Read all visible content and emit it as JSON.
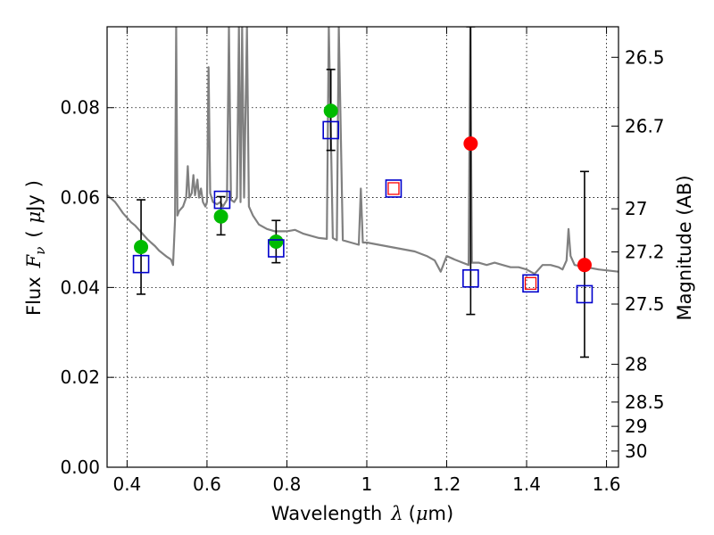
{
  "chart_data": {
    "type": "scatter",
    "title": "",
    "xlabel": "Wavelength",
    "xlabel_symbol": "λ",
    "xlabel_unit_prefix": "μ",
    "xlabel_unit": "m",
    "ylabel_left": "Flux",
    "ylabel_left_symbol": "F",
    "ylabel_left_subscript": "ν",
    "ylabel_left_unit_prefix": "μ",
    "ylabel_left_unit": "Jy",
    "ylabel_right": "Magnitude (AB)",
    "xlim": [
      0.35,
      1.63
    ],
    "ylim": [
      0.0,
      0.098
    ],
    "grid": true,
    "x_ticks": [
      0.4,
      0.6,
      0.8,
      1.0,
      1.2,
      1.4,
      1.6
    ],
    "x_tick_labels": [
      "0.4",
      "0.6",
      "0.8",
      "1",
      "1.2",
      "1.4",
      "1.6"
    ],
    "y_ticks": [
      0.0,
      0.02,
      0.04,
      0.06,
      0.08
    ],
    "y_tick_labels": [
      "0.00",
      "0.02",
      "0.04",
      "0.06",
      "0.08"
    ],
    "right_ticks": [
      {
        "label": "26.5",
        "flux": 0.0912
      },
      {
        "label": "26.7",
        "flux": 0.0759
      },
      {
        "label": "27",
        "flux": 0.0575
      },
      {
        "label": "27.2",
        "flux": 0.0479
      },
      {
        "label": "27.5",
        "flux": 0.0363
      },
      {
        "label": "28",
        "flux": 0.0229
      },
      {
        "label": "28.5",
        "flux": 0.0145
      },
      {
        "label": "29",
        "flux": 0.0091
      },
      {
        "label": "30",
        "flux": 0.0036
      }
    ],
    "series": [
      {
        "kind": "spectrum",
        "color": "#808080",
        "points": [
          [
            0.35,
            0.0605
          ],
          [
            0.36,
            0.0598
          ],
          [
            0.37,
            0.059
          ],
          [
            0.38,
            0.0578
          ],
          [
            0.39,
            0.0565
          ],
          [
            0.4,
            0.0555
          ],
          [
            0.41,
            0.0545
          ],
          [
            0.42,
            0.0538
          ],
          [
            0.43,
            0.0528
          ],
          [
            0.44,
            0.0518
          ],
          [
            0.45,
            0.0508
          ],
          [
            0.46,
            0.05
          ],
          [
            0.47,
            0.0492
          ],
          [
            0.48,
            0.0482
          ],
          [
            0.49,
            0.0475
          ],
          [
            0.5,
            0.0468
          ],
          [
            0.51,
            0.0462
          ],
          [
            0.515,
            0.045
          ],
          [
            0.52,
            0.055
          ],
          [
            0.523,
            0.098
          ],
          [
            0.526,
            0.056
          ],
          [
            0.53,
            0.057
          ],
          [
            0.54,
            0.058
          ],
          [
            0.548,
            0.06
          ],
          [
            0.552,
            0.067
          ],
          [
            0.556,
            0.06
          ],
          [
            0.562,
            0.061
          ],
          [
            0.566,
            0.065
          ],
          [
            0.57,
            0.0605
          ],
          [
            0.576,
            0.064
          ],
          [
            0.58,
            0.06
          ],
          [
            0.585,
            0.062
          ],
          [
            0.59,
            0.059
          ],
          [
            0.596,
            0.058
          ],
          [
            0.6,
            0.059
          ],
          [
            0.604,
            0.089
          ],
          [
            0.608,
            0.061
          ],
          [
            0.615,
            0.059
          ],
          [
            0.625,
            0.0585
          ],
          [
            0.633,
            0.059
          ],
          [
            0.64,
            0.058
          ],
          [
            0.65,
            0.0595
          ],
          [
            0.655,
            0.098
          ],
          [
            0.66,
            0.0595
          ],
          [
            0.668,
            0.059
          ],
          [
            0.675,
            0.06
          ],
          [
            0.68,
            0.098
          ],
          [
            0.684,
            0.059
          ],
          [
            0.688,
            0.098
          ],
          [
            0.693,
            0.06
          ],
          [
            0.7,
            0.098
          ],
          [
            0.705,
            0.058
          ],
          [
            0.715,
            0.056
          ],
          [
            0.73,
            0.054
          ],
          [
            0.75,
            0.053
          ],
          [
            0.77,
            0.0525
          ],
          [
            0.8,
            0.0525
          ],
          [
            0.82,
            0.0528
          ],
          [
            0.84,
            0.052
          ],
          [
            0.86,
            0.0515
          ],
          [
            0.88,
            0.051
          ],
          [
            0.9,
            0.0508
          ],
          [
            0.905,
            0.098
          ],
          [
            0.915,
            0.051
          ],
          [
            0.925,
            0.0505
          ],
          [
            0.93,
            0.098
          ],
          [
            0.94,
            0.0505
          ],
          [
            0.96,
            0.05
          ],
          [
            0.98,
            0.0495
          ],
          [
            0.985,
            0.062
          ],
          [
            0.99,
            0.05
          ],
          [
            1.0,
            0.05
          ],
          [
            1.03,
            0.0495
          ],
          [
            1.06,
            0.049
          ],
          [
            1.09,
            0.0485
          ],
          [
            1.12,
            0.048
          ],
          [
            1.15,
            0.047
          ],
          [
            1.17,
            0.046
          ],
          [
            1.185,
            0.0435
          ],
          [
            1.2,
            0.047
          ],
          [
            1.22,
            0.0462
          ],
          [
            1.24,
            0.0455
          ],
          [
            1.255,
            0.045
          ],
          [
            1.259,
            0.098
          ],
          [
            1.263,
            0.0455
          ],
          [
            1.28,
            0.0455
          ],
          [
            1.3,
            0.045
          ],
          [
            1.32,
            0.0455
          ],
          [
            1.34,
            0.045
          ],
          [
            1.36,
            0.0445
          ],
          [
            1.38,
            0.0445
          ],
          [
            1.4,
            0.044
          ],
          [
            1.42,
            0.043
          ],
          [
            1.44,
            0.045
          ],
          [
            1.46,
            0.045
          ],
          [
            1.48,
            0.0445
          ],
          [
            1.49,
            0.044
          ],
          [
            1.5,
            0.046
          ],
          [
            1.505,
            0.053
          ],
          [
            1.51,
            0.047
          ],
          [
            1.52,
            0.045
          ],
          [
            1.55,
            0.0445
          ],
          [
            1.58,
            0.044
          ],
          [
            1.6,
            0.0438
          ],
          [
            1.63,
            0.0435
          ]
        ]
      },
      {
        "kind": "observed",
        "color": "#00bb00",
        "points": [
          {
            "x": 0.435,
            "y": 0.049,
            "yerr_low": 0.0385,
            "yerr_high": 0.0595
          },
          {
            "x": 0.635,
            "y": 0.0558,
            "yerr_low": 0.0517,
            "yerr_high": 0.0602
          },
          {
            "x": 0.773,
            "y": 0.0502,
            "yerr_low": 0.0455,
            "yerr_high": 0.0549
          },
          {
            "x": 0.91,
            "y": 0.0793,
            "yerr_low": 0.0705,
            "yerr_high": 0.0885
          }
        ]
      },
      {
        "kind": "observed",
        "color": "#ff0000",
        "points": [
          {
            "x": 1.26,
            "y": 0.072,
            "yerr_low": 0.034,
            "yerr_high": 0.098
          },
          {
            "x": 1.545,
            "y": 0.045,
            "yerr_low": 0.0245,
            "yerr_high": 0.0658
          }
        ]
      },
      {
        "kind": "model",
        "color": "#0000cc",
        "points": [
          {
            "x": 0.435,
            "y": 0.0452
          },
          {
            "x": 0.638,
            "y": 0.0595
          },
          {
            "x": 0.773,
            "y": 0.0487
          },
          {
            "x": 0.91,
            "y": 0.075
          },
          {
            "x": 1.067,
            "y": 0.062
          },
          {
            "x": 1.26,
            "y": 0.042
          },
          {
            "x": 1.41,
            "y": 0.0409
          },
          {
            "x": 1.545,
            "y": 0.0385
          }
        ]
      },
      {
        "kind": "model-inner",
        "color": "#ff0000",
        "points": [
          {
            "x": 1.067,
            "y": 0.062
          },
          {
            "x": 1.41,
            "y": 0.0409
          }
        ]
      }
    ]
  }
}
